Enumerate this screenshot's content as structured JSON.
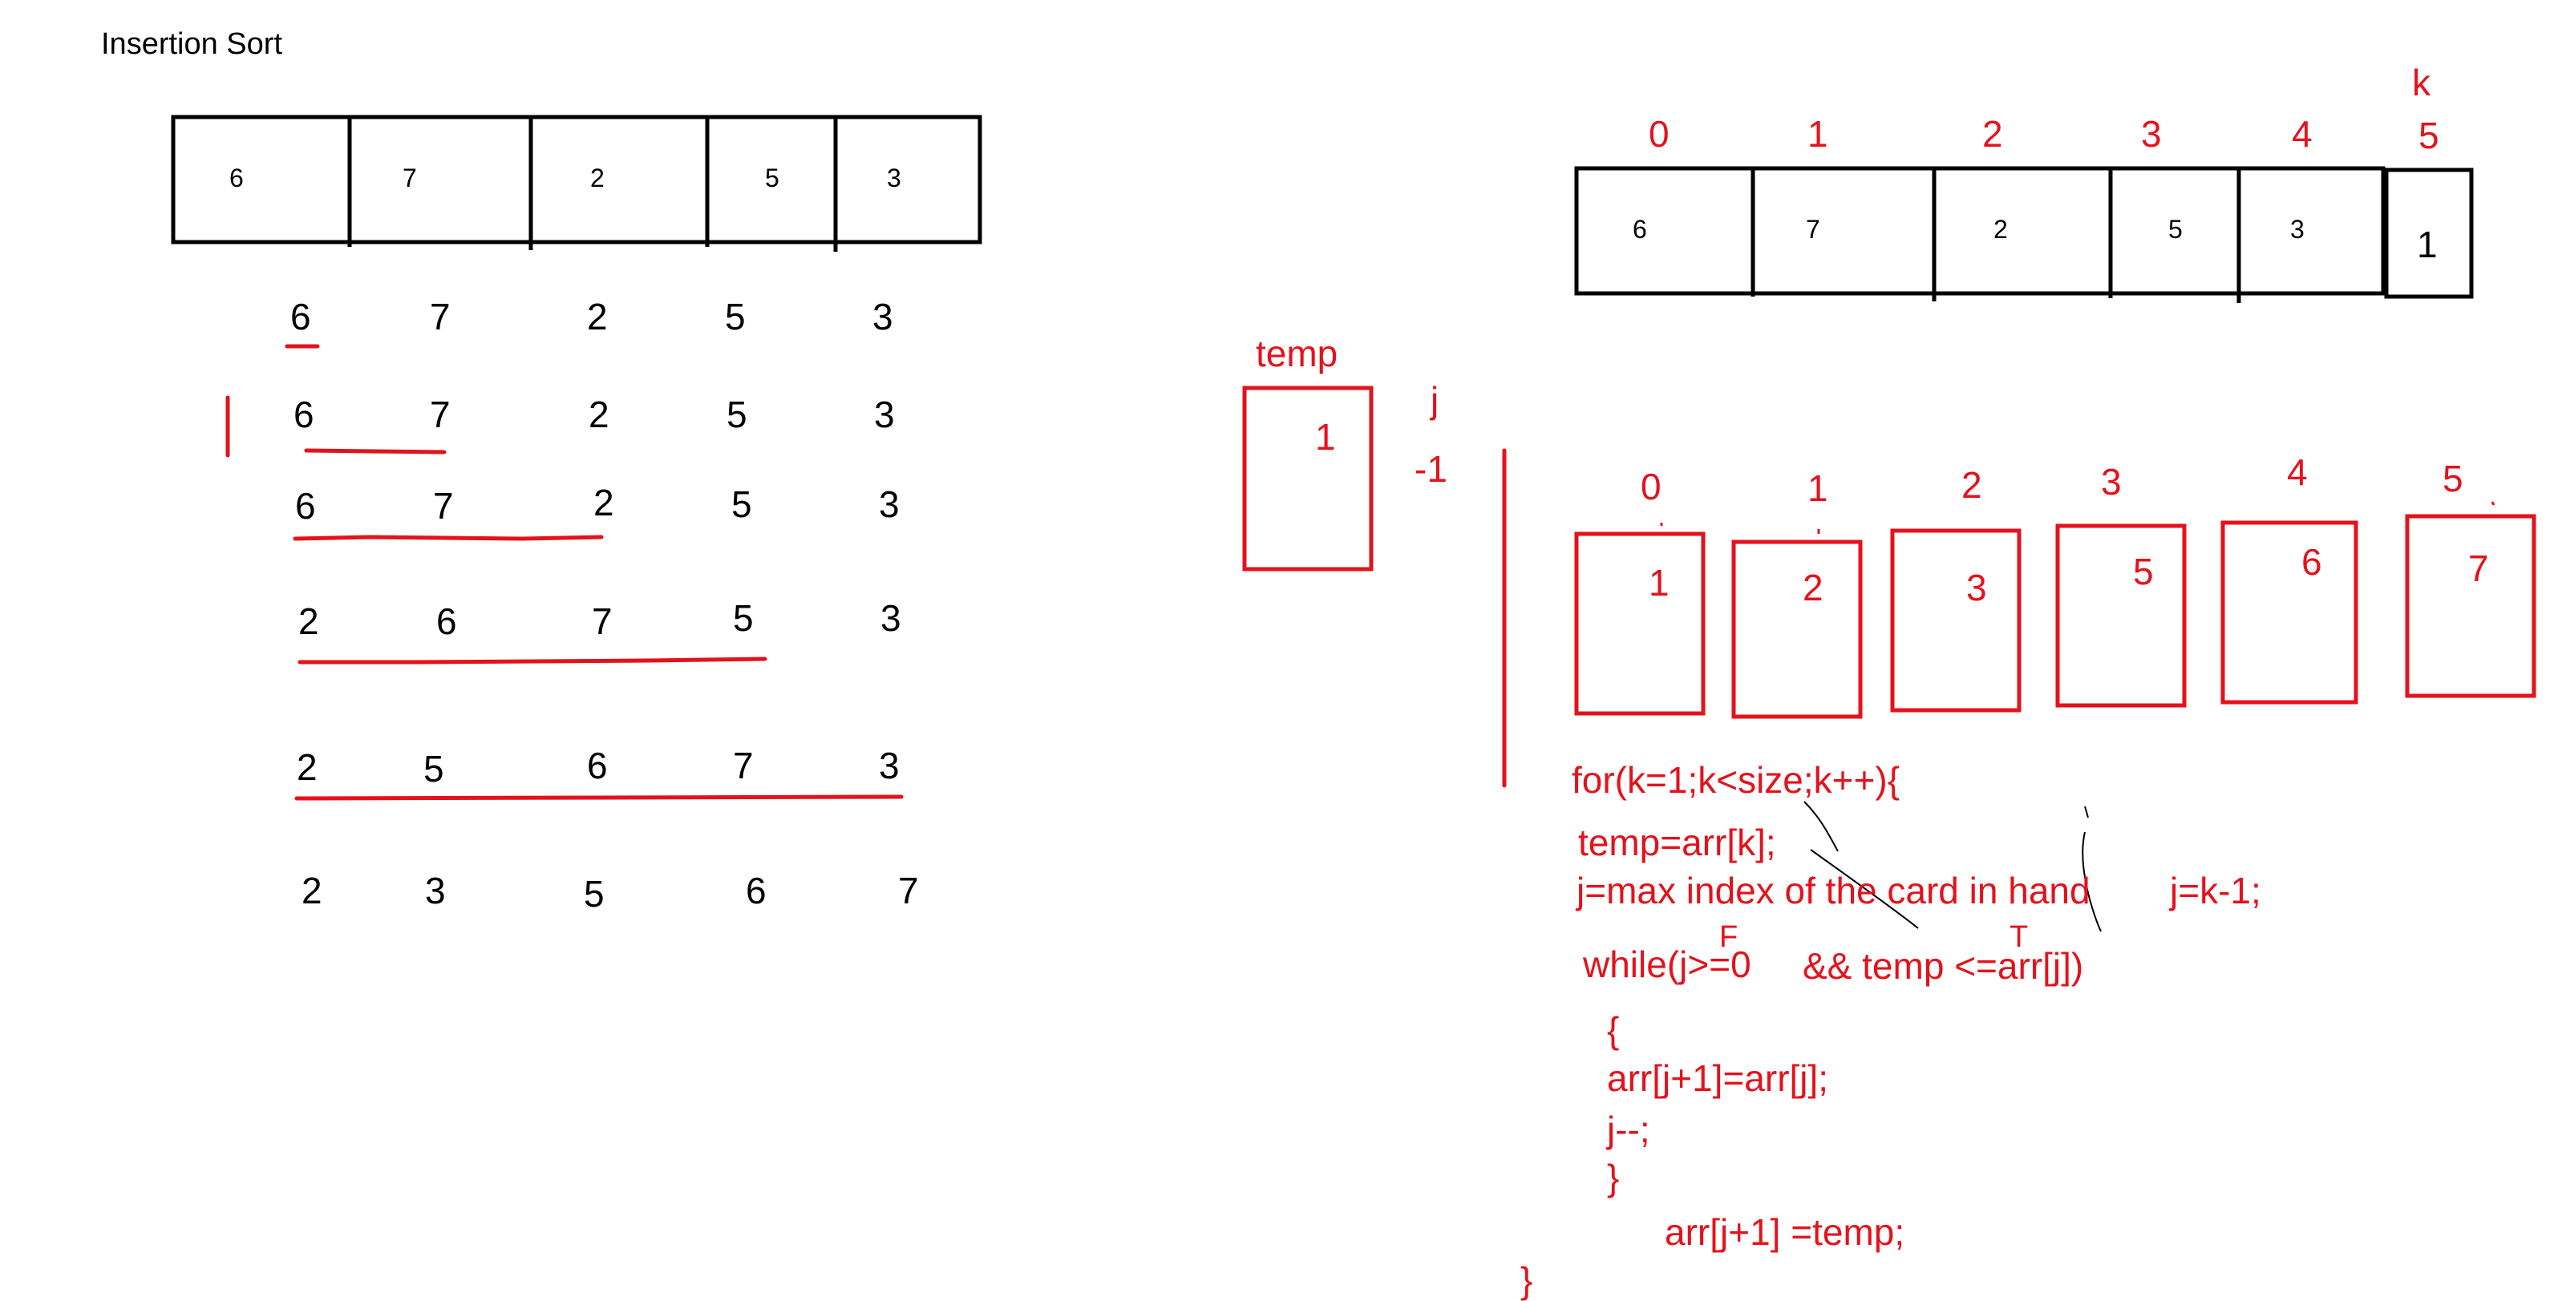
{
  "title": "Insertion Sort",
  "colors": {
    "ink": "#000000",
    "marker": "#e4121c",
    "background": "#ffffff"
  },
  "left": {
    "array": [
      "6",
      "7",
      "2",
      "5",
      "3"
    ],
    "passes": [
      [
        "6",
        "7",
        "2",
        "5",
        "3"
      ],
      [
        "6",
        "7",
        "2",
        "5",
        "3"
      ],
      [
        "6",
        "7",
        "2",
        "5",
        "3"
      ],
      [
        "2",
        "6",
        "7",
        "5",
        "3"
      ],
      [
        "2",
        "5",
        "6",
        "7",
        "3"
      ],
      [
        "2",
        "3",
        "5",
        "6",
        "7"
      ]
    ]
  },
  "right": {
    "top_indices": [
      "0",
      "1",
      "2",
      "3",
      "4",
      "5"
    ],
    "k_label": "k",
    "top_array": [
      "6",
      "7",
      "2",
      "5",
      "3",
      "1"
    ],
    "temp_label": "temp",
    "temp_value": "1",
    "j_label": "j",
    "j_value": "-1",
    "result_indices": [
      "0",
      "1",
      "2",
      "3",
      "4",
      "5"
    ],
    "result_values": [
      "1",
      "2",
      "3",
      "5",
      "6",
      "7"
    ],
    "cond_false": "F",
    "cond_true": "T",
    "code": [
      "for(k=1;k<size;k++){",
      "temp=arr[k];",
      "j=max index of the card in hand",
      "j=k-1;",
      "while(j>=0",
      "&& temp <=arr[j])",
      "{",
      "arr[j+1]=arr[j];",
      "j--;",
      "}",
      "arr[j+1] =temp;",
      "}"
    ]
  }
}
